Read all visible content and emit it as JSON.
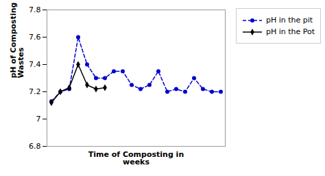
{
  "chart_data": {
    "type": "line",
    "xlabel": "Time of Composting in\nweeks",
    "ylabel": "pH of Composting\nWastes",
    "x": [
      1,
      2,
      3,
      4,
      5,
      6,
      7,
      8,
      9,
      10,
      11,
      12,
      13,
      14,
      15,
      16,
      17,
      18,
      19,
      20
    ],
    "series": [
      {
        "name": "pH in the pit",
        "color": "#0000cc",
        "marker": "circle",
        "line_style": "dashed",
        "values": [
          7.13,
          7.2,
          7.22,
          7.6,
          7.4,
          7.3,
          7.3,
          7.35,
          7.35,
          7.25,
          7.22,
          7.25,
          7.35,
          7.2,
          7.22,
          7.2,
          7.3,
          7.22,
          7.2,
          7.2
        ]
      },
      {
        "name": "pH in the Pot",
        "color": "#000000",
        "marker": "diamond",
        "line_style": "solid",
        "values": [
          7.12,
          7.2,
          7.23,
          7.4,
          7.25,
          7.22,
          7.23,
          null,
          null,
          null,
          null,
          null,
          null,
          null,
          null,
          null,
          null,
          null,
          null,
          null
        ]
      }
    ],
    "xlim": [
      0.5,
      20.5
    ],
    "xticks": [],
    "ylim": [
      6.8,
      7.8
    ],
    "yticks": [
      6.8,
      7,
      7.2,
      7.4,
      7.6,
      7.8
    ],
    "tick_labels": "y",
    "grid": false,
    "legend": "right"
  }
}
